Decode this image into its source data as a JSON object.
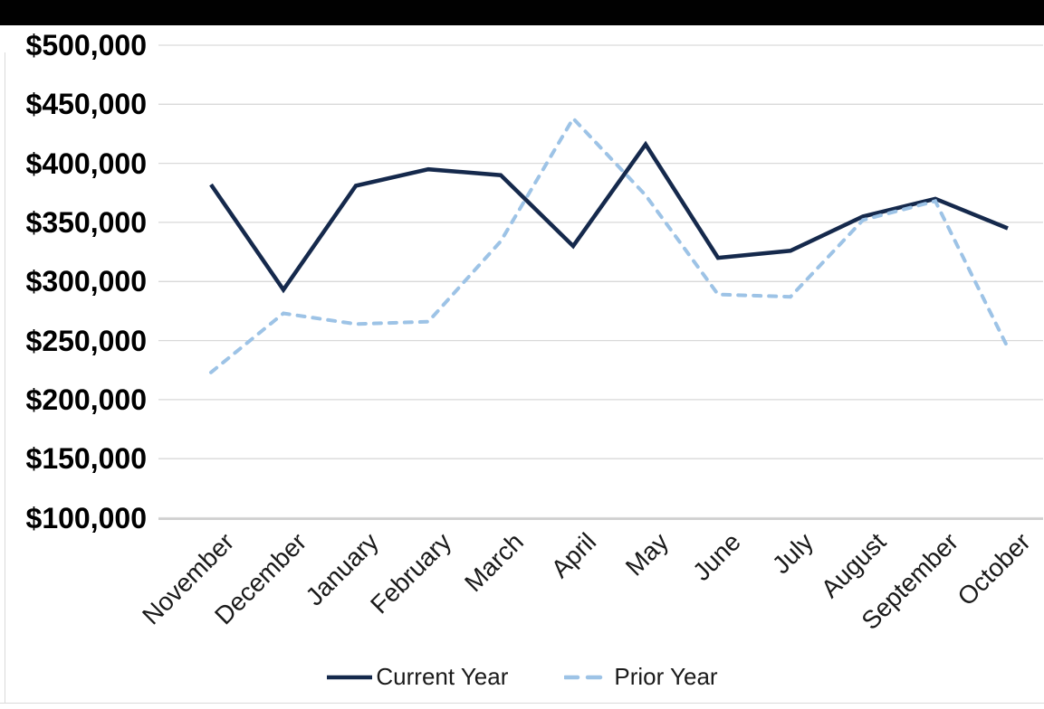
{
  "window": {
    "top_bar_color": "#010101",
    "background_color": "#ffffff",
    "frame_line_color": "#dadada"
  },
  "chart_data": {
    "type": "line",
    "title": "",
    "xlabel": "",
    "ylabel": "",
    "categories": [
      "November",
      "December",
      "January",
      "February",
      "March",
      "April",
      "May",
      "June",
      "July",
      "August",
      "September",
      "October"
    ],
    "series": [
      {
        "name": "Current Year",
        "style": "solid",
        "color": "#15294C",
        "stroke_width": 4.5,
        "values": [
          382000,
          293000,
          381000,
          395000,
          390000,
          330000,
          416000,
          320000,
          326000,
          355000,
          370000,
          345000
        ]
      },
      {
        "name": "Prior Year",
        "style": "dashed",
        "color": "#9DC3E6",
        "stroke_width": 4,
        "values": [
          223000,
          273000,
          264000,
          266000,
          334000,
          438000,
          373000,
          289000,
          287000,
          352000,
          368000,
          244000
        ]
      }
    ],
    "ylim": [
      100000,
      500000
    ],
    "ytick_step": 50000,
    "y_ticks": [
      {
        "label": "$500,000",
        "value": 500000
      },
      {
        "label": "$450,000",
        "value": 450000
      },
      {
        "label": "$400,000",
        "value": 400000
      },
      {
        "label": "$350,000",
        "value": 350000
      },
      {
        "label": "$300,000",
        "value": 300000
      },
      {
        "label": "$250,000",
        "value": 250000
      },
      {
        "label": "$200,000",
        "value": 200000
      },
      {
        "label": "$150,000",
        "value": 150000
      },
      {
        "label": "$100,000",
        "value": 100000
      }
    ],
    "grid": true,
    "gridline_color": "#D9D9D9",
    "axis_line_color": "#C2C2C2",
    "legend_position": "bottom"
  }
}
